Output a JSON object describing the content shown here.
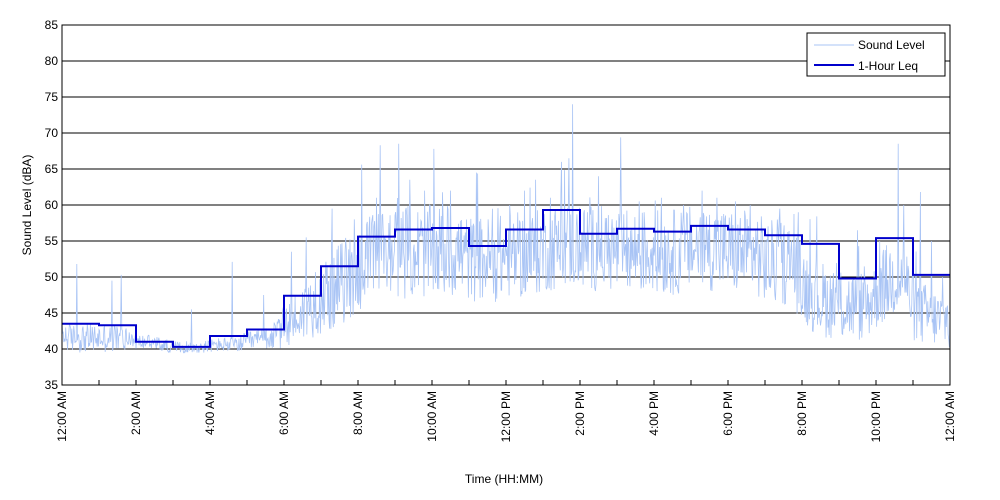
{
  "chart_data": {
    "type": "line",
    "title": "",
    "xlabel": "Time (HH:MM)",
    "ylabel": "Sound Level (dBA)",
    "xlim": [
      0,
      24
    ],
    "ylim": [
      35,
      85
    ],
    "y_ticks": [
      35,
      40,
      45,
      50,
      55,
      60,
      65,
      70,
      75,
      80,
      85
    ],
    "x_tick_labels": [
      "12:00 AM",
      "2:00 AM",
      "4:00 AM",
      "6:00 AM",
      "8:00 AM",
      "10:00 AM",
      "12:00 PM",
      "2:00 PM",
      "4:00 PM",
      "6:00 PM",
      "8:00 PM",
      "10:00 PM",
      "12:00 AM"
    ],
    "grid": "horizontal",
    "legend": {
      "position": "top-right",
      "entries": [
        {
          "name": "Sound Level",
          "color": "#a9c4f5"
        },
        {
          "name": "1-Hour Leq",
          "color": "#0000cc"
        }
      ]
    },
    "series": [
      {
        "name": "Sound Level",
        "color": "#a9c4f5",
        "sample_hours": [
          0,
          0.25,
          0.5,
          0.75,
          1,
          1.25,
          1.5,
          1.75,
          2,
          2.25,
          2.5,
          2.75,
          3,
          3.25,
          3.5,
          3.75,
          4,
          4.25,
          4.5,
          4.75,
          5,
          5.25,
          5.5,
          5.75,
          6,
          6.25,
          6.5,
          6.75,
          7,
          7.25,
          7.5,
          7.75,
          8,
          8.25,
          8.5,
          8.75,
          9,
          9.25,
          9.5,
          9.75,
          10,
          10.25,
          10.5,
          10.75,
          11,
          11.25,
          11.5,
          11.75,
          12,
          12.25,
          12.5,
          12.75,
          13,
          13.25,
          13.5,
          13.75,
          14,
          14.25,
          14.5,
          14.75,
          15,
          15.25,
          15.5,
          15.75,
          16,
          16.25,
          16.5,
          16.75,
          17,
          17.25,
          17.5,
          17.75,
          18,
          18.25,
          18.5,
          18.75,
          19,
          19.25,
          19.5,
          19.75,
          20,
          20.25,
          20.5,
          20.75,
          21,
          21.25,
          21.5,
          21.75,
          22,
          22.25,
          22.5,
          22.75,
          23,
          23.25,
          23.5,
          23.75,
          24
        ],
        "baseline": [
          42,
          41.5,
          41.5,
          41.5,
          41.5,
          41.5,
          41.5,
          41.5,
          41,
          41,
          40.8,
          40.5,
          40.3,
          40.2,
          40.2,
          40.2,
          40.5,
          40.6,
          40.6,
          40.6,
          41,
          41.2,
          41.4,
          41.8,
          43,
          44,
          45,
          46,
          47,
          48,
          49,
          50,
          51,
          52,
          53,
          53.5,
          53.5,
          53.5,
          53.5,
          53.5,
          53.5,
          53.5,
          53.5,
          53.5,
          52.5,
          52.5,
          52.5,
          52.5,
          53,
          53,
          53,
          53,
          54,
          54,
          54.5,
          54.5,
          54,
          54,
          54,
          54,
          53.5,
          53.5,
          53.5,
          53.5,
          53.5,
          53.5,
          53.5,
          53.5,
          54,
          54,
          54,
          54,
          53.5,
          53.5,
          53.5,
          53.5,
          52,
          52,
          52,
          52,
          49,
          48,
          47,
          46.5,
          46,
          46,
          46,
          46,
          48,
          49,
          50,
          50,
          46,
          45,
          44.5,
          44,
          44
        ],
        "spread": [
          2,
          2,
          2,
          2,
          2,
          2,
          2,
          2,
          1,
          1,
          1,
          1,
          0.8,
          0.8,
          0.8,
          0.8,
          1,
          1,
          1,
          1,
          1.5,
          1.5,
          1.5,
          2,
          3,
          3.5,
          4,
          4.5,
          5,
          5.5,
          6,
          6,
          6.5,
          6.5,
          6.5,
          6.5,
          6.5,
          6.5,
          6.5,
          6.5,
          6.5,
          6.5,
          6.5,
          6.5,
          6,
          6,
          6,
          6,
          6,
          6,
          6,
          6,
          6,
          6,
          6,
          6,
          6,
          6,
          6,
          6,
          6,
          6,
          6,
          6,
          6,
          6,
          6,
          6,
          6,
          6,
          6,
          6,
          6,
          6,
          6,
          6,
          6,
          6,
          6,
          6,
          5.5,
          5.5,
          5.5,
          5,
          5,
          5,
          5,
          5,
          5.5,
          5.5,
          5.5,
          5.5,
          5,
          4.5,
          4,
          4,
          4
        ],
        "peaks": [
          [
            0.4,
            51.8
          ],
          [
            1.35,
            49.5
          ],
          [
            1.6,
            50.3
          ],
          [
            3.5,
            45.5
          ],
          [
            4.6,
            52.1
          ],
          [
            5.45,
            47.5
          ],
          [
            6.2,
            53.5
          ],
          [
            6.6,
            55.5
          ],
          [
            7.3,
            59.5
          ],
          [
            7.9,
            58
          ],
          [
            8.1,
            65.6
          ],
          [
            8.5,
            61
          ],
          [
            8.6,
            68.3
          ],
          [
            9.1,
            68.5
          ],
          [
            9.4,
            63.5
          ],
          [
            9.8,
            62
          ],
          [
            10.05,
            67.8
          ],
          [
            10.5,
            62
          ],
          [
            11.2,
            64.5
          ],
          [
            12.1,
            60
          ],
          [
            12.5,
            62
          ],
          [
            12.8,
            63.5
          ],
          [
            13.2,
            61
          ],
          [
            13.7,
            66.5
          ],
          [
            13.8,
            74
          ],
          [
            14.2,
            59
          ],
          [
            14.5,
            64
          ],
          [
            15.1,
            69.4
          ],
          [
            15.6,
            60.5
          ],
          [
            16.2,
            61
          ],
          [
            16.8,
            60
          ],
          [
            17.3,
            62
          ],
          [
            17.7,
            61
          ],
          [
            18.2,
            60.5
          ],
          [
            18.6,
            60
          ],
          [
            19.4,
            59.5
          ],
          [
            19.9,
            59
          ],
          [
            20.4,
            56
          ],
          [
            21.0,
            54
          ],
          [
            21.5,
            56.5
          ],
          [
            22.1,
            55
          ],
          [
            22.6,
            68.5
          ],
          [
            22.75,
            60
          ],
          [
            23.2,
            61.8
          ],
          [
            23.5,
            55
          ],
          [
            23.8,
            50
          ]
        ]
      },
      {
        "name": "1-Hour Leq",
        "color": "#0000cc",
        "hours": [
          0,
          1,
          2,
          3,
          4,
          5,
          6,
          7,
          8,
          9,
          10,
          11,
          12,
          13,
          14,
          15,
          16,
          17,
          18,
          19,
          20,
          21,
          22,
          23
        ],
        "values": [
          43.5,
          43.3,
          41,
          40.3,
          41.8,
          42.7,
          47.4,
          51.5,
          55.6,
          56.6,
          56.8,
          54.3,
          56.6,
          59.3,
          56,
          56.7,
          56.3,
          57.1,
          56.6,
          55.8,
          54.6,
          49.8,
          55.4,
          50.3
        ]
      }
    ]
  }
}
